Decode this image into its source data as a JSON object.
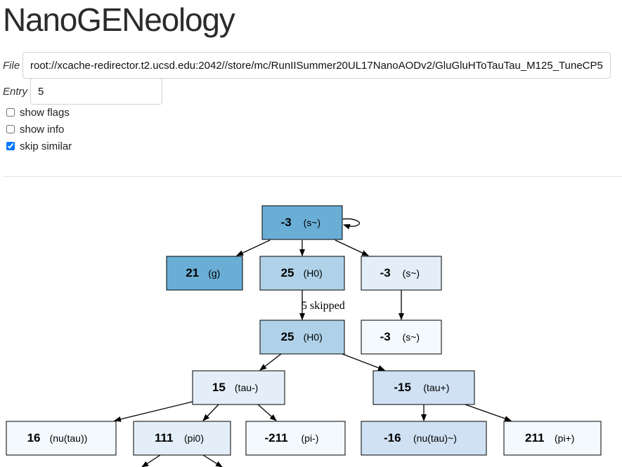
{
  "app": {
    "title": "NanoGENeology"
  },
  "controls": {
    "file_label": "File",
    "file_value": "root://xcache-redirector.t2.ucsd.edu:2042//store/mc/RunIISummer20UL17NanoAODv2/GluGluHToTauTau_M125_TuneCP5",
    "entry_label": "Entry",
    "entry_value": "5",
    "show_flags": {
      "label": "show flags",
      "checked": false
    },
    "show_info": {
      "label": "show info",
      "checked": false
    },
    "skip_similar": {
      "label": "skip similar",
      "checked": true
    }
  },
  "colors": {
    "strong": "#6aaed6",
    "medium": "#b0d2e8",
    "light": "#cfe1f2",
    "pale": "#e3eef9",
    "faint": "#f4f9fe",
    "edge": "#000000"
  },
  "tree": {
    "nodes": [
      {
        "key": "n1",
        "id": "-3",
        "name": "(s~)",
        "shade": "strong"
      },
      {
        "key": "n2",
        "id": "21",
        "name": "(g)",
        "shade": "strong"
      },
      {
        "key": "n3",
        "id": "25",
        "name": "(H0)",
        "shade": "medium"
      },
      {
        "key": "n4",
        "id": "-3",
        "name": "(s~)",
        "shade": "pale"
      },
      {
        "key": "n5",
        "id": "25",
        "name": "(H0)",
        "shade": "medium"
      },
      {
        "key": "n6",
        "id": "-3",
        "name": "(s~)",
        "shade": "faint"
      },
      {
        "key": "n7",
        "id": "15",
        "name": "(tau-)",
        "shade": "pale"
      },
      {
        "key": "n8",
        "id": "-15",
        "name": "(tau+)",
        "shade": "light"
      },
      {
        "key": "n9",
        "id": "16",
        "name": "(nu(tau))",
        "shade": "faint"
      },
      {
        "key": "n10",
        "id": "111",
        "name": "(pi0)",
        "shade": "pale"
      },
      {
        "key": "n11",
        "id": "-211",
        "name": "(pi-)",
        "shade": "faint"
      },
      {
        "key": "n12",
        "id": "-16",
        "name": "(nu(tau)~)",
        "shade": "light"
      },
      {
        "key": "n13",
        "id": "211",
        "name": "(pi+)",
        "shade": "faint"
      }
    ],
    "edges": [
      {
        "from": "n1",
        "to": "n1",
        "label": ""
      },
      {
        "from": "n1",
        "to": "n2",
        "label": ""
      },
      {
        "from": "n1",
        "to": "n3",
        "label": ""
      },
      {
        "from": "n1",
        "to": "n4",
        "label": ""
      },
      {
        "from": "n3",
        "to": "n5",
        "label": "5 skipped"
      },
      {
        "from": "n4",
        "to": "n6",
        "label": ""
      },
      {
        "from": "n5",
        "to": "n7",
        "label": ""
      },
      {
        "from": "n5",
        "to": "n8",
        "label": ""
      },
      {
        "from": "n7",
        "to": "n9",
        "label": ""
      },
      {
        "from": "n7",
        "to": "n10",
        "label": ""
      },
      {
        "from": "n7",
        "to": "n11",
        "label": ""
      },
      {
        "from": "n8",
        "to": "n12",
        "label": ""
      },
      {
        "from": "n8",
        "to": "n13",
        "label": ""
      },
      {
        "from": "n10",
        "to": "",
        "label": ""
      },
      {
        "from": "n10",
        "to": "",
        "label": ""
      }
    ]
  }
}
